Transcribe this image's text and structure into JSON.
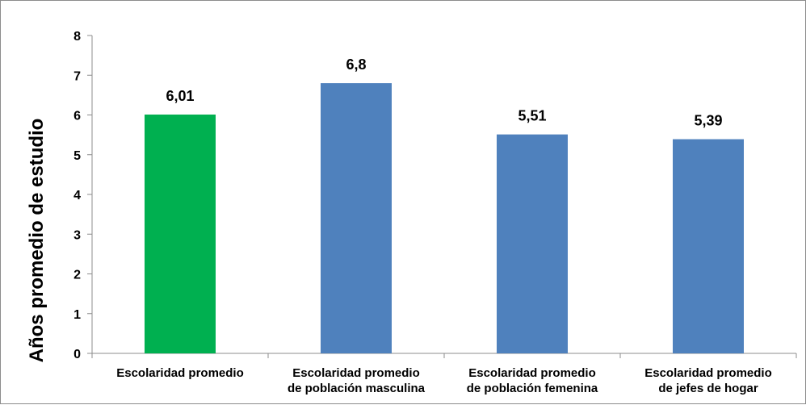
{
  "chart_data": {
    "type": "bar",
    "categories": [
      [
        "Escolaridad promedio"
      ],
      [
        "Escolaridad promedio",
        "de población masculina"
      ],
      [
        "Escolaridad promedio",
        "de población femenina"
      ],
      [
        "Escolaridad promedio",
        "de jefes de hogar"
      ]
    ],
    "values": [
      6.01,
      6.8,
      5.51,
      5.39
    ],
    "value_labels": [
      "6,01",
      "6,8",
      "5,51",
      "5,39"
    ],
    "bar_colors": [
      "#00b050",
      "#4f81bd",
      "#4f81bd",
      "#4f81bd"
    ],
    "title": "",
    "xlabel": "",
    "ylabel": "Años promedio de estudio",
    "ylim": [
      0,
      8
    ],
    "yticks": [
      0,
      1,
      2,
      3,
      4,
      5,
      6,
      7,
      8
    ],
    "grid": false,
    "legend": "none"
  }
}
